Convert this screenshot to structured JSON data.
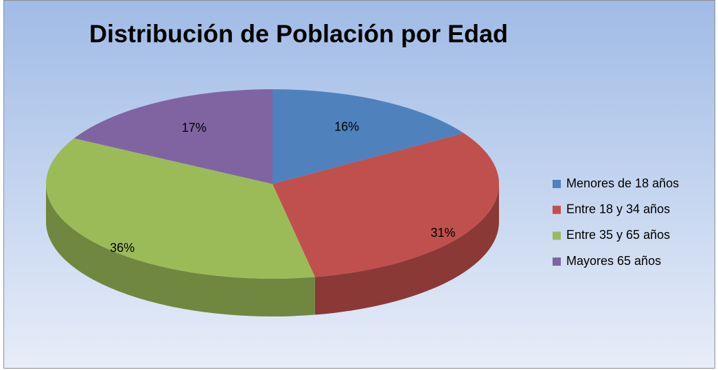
{
  "chart_data": {
    "type": "pie",
    "title": "Distribución de Población por Edad",
    "categories": [
      "Menores de 18 años",
      "Entre 18 y 34 años",
      "Entre 35 y 65 años",
      "Mayores 65 años"
    ],
    "values": [
      16,
      31,
      36,
      17
    ],
    "value_labels": [
      "16%",
      "31%",
      "36%",
      "17%"
    ],
    "colors": [
      "#4f81bd",
      "#c0504d",
      "#9bbb59",
      "#8064a2"
    ],
    "legend": "right"
  }
}
